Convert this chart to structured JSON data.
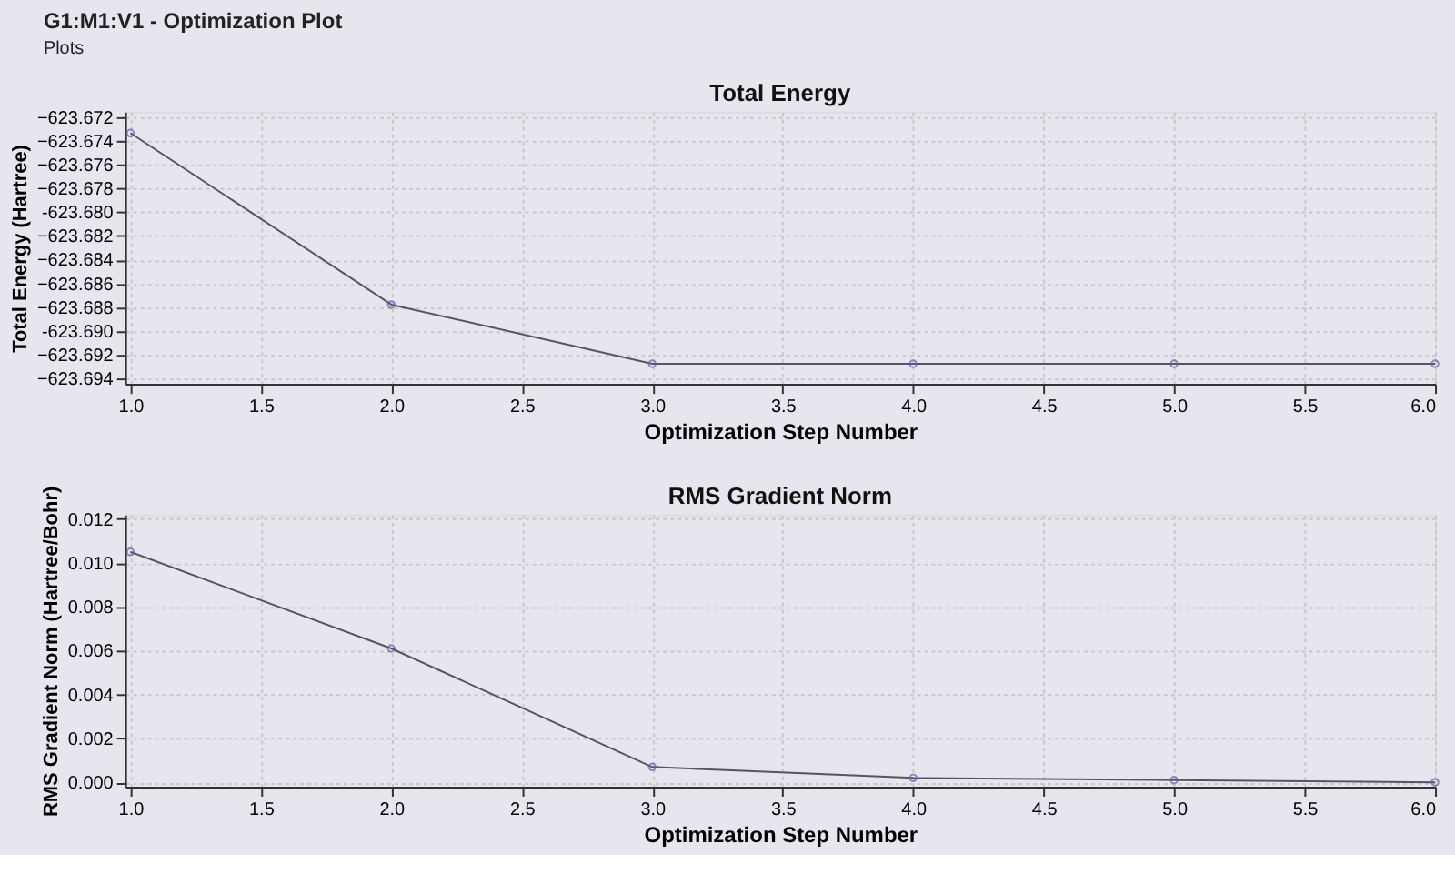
{
  "chart_data": [
    {
      "type": "line",
      "title": "Total Energy",
      "xlabel": "Optimization Step Number",
      "ylabel": "Total Energy (Hartree)",
      "annotations": [
        "G1:M1:V1 - Optimization Plot",
        "Plots"
      ],
      "x": [
        1,
        2,
        3,
        4,
        5,
        6
      ],
      "series": [
        {
          "color": "#555566",
          "values": [
            -623.6733,
            -623.6878,
            -623.6928,
            -623.6928,
            -623.6928,
            -623.6928
          ]
        }
      ],
      "xlim": [
        0.98,
        6.0
      ],
      "xticks": [
        {
          "value": 1,
          "label": "1.0"
        },
        {
          "value": 1.5,
          "label": "1.5"
        },
        {
          "value": 2,
          "label": "2.0"
        },
        {
          "value": 2.5,
          "label": "2.5"
        },
        {
          "value": 3,
          "label": "3.0"
        },
        {
          "value": 3.5,
          "label": "3.5"
        },
        {
          "value": 4,
          "label": "4.0"
        },
        {
          "value": 4.5,
          "label": "4.5"
        },
        {
          "value": 5,
          "label": "5.0"
        },
        {
          "value": 5.5,
          "label": "5.5"
        },
        {
          "value": 6,
          "label": "6.0"
        }
      ],
      "ylim": [
        -623.6945,
        -623.6715
      ],
      "yticks": [
        -623.672,
        -623.674,
        -623.676,
        -623.678,
        {
          "value": -623.68,
          "label": "-623.680"
        },
        -623.682,
        -623.684,
        -623.686,
        -623.688,
        {
          "value": -623.69,
          "label": "-623.690"
        },
        -623.692,
        -623.694
      ],
      "grid": true,
      "marker": "circle",
      "line_style": "solid"
    },
    {
      "type": "line",
      "title": "RMS Gradient Norm",
      "xlabel": "Optimization Step Number",
      "ylabel": "RMS Gradient Norm (Hartree/Bohr)",
      "x": [
        1,
        2,
        3,
        4,
        5,
        6
      ],
      "series": [
        {
          "color": "#555566",
          "values": [
            0.0105,
            0.0061,
            0.0007,
            0.0002,
            0.0001,
            0.0
          ]
        }
      ],
      "xlim": [
        0.98,
        6.0
      ],
      "xticks": [
        {
          "value": 1,
          "label": "1.0"
        },
        {
          "value": 1.5,
          "label": "1.5"
        },
        {
          "value": 2,
          "label": "2.0"
        },
        {
          "value": 2.5,
          "label": "2.5"
        },
        {
          "value": 3,
          "label": "3.0"
        },
        {
          "value": 3.5,
          "label": "3.5"
        },
        {
          "value": 4,
          "label": "4.0"
        },
        {
          "value": 4.5,
          "label": "4.5"
        },
        {
          "value": 5,
          "label": "5.0"
        },
        {
          "value": 5.5,
          "label": "5.5"
        },
        {
          "value": 6,
          "label": "6.0"
        }
      ],
      "ylim": [
        -0.0002,
        0.0122
      ],
      "yticks": [
        {
          "value": 0,
          "label": "0.000"
        },
        {
          "value": 0.002,
          "label": "0.002"
        },
        {
          "value": 0.004,
          "label": "0.004"
        },
        {
          "value": 0.006,
          "label": "0.006"
        },
        {
          "value": 0.008,
          "label": "0.008"
        },
        {
          "value": 0.01,
          "label": "0.010"
        },
        {
          "value": 0.012,
          "label": "0.012"
        }
      ],
      "grid": true,
      "marker": "circle",
      "line_style": "solid"
    }
  ]
}
